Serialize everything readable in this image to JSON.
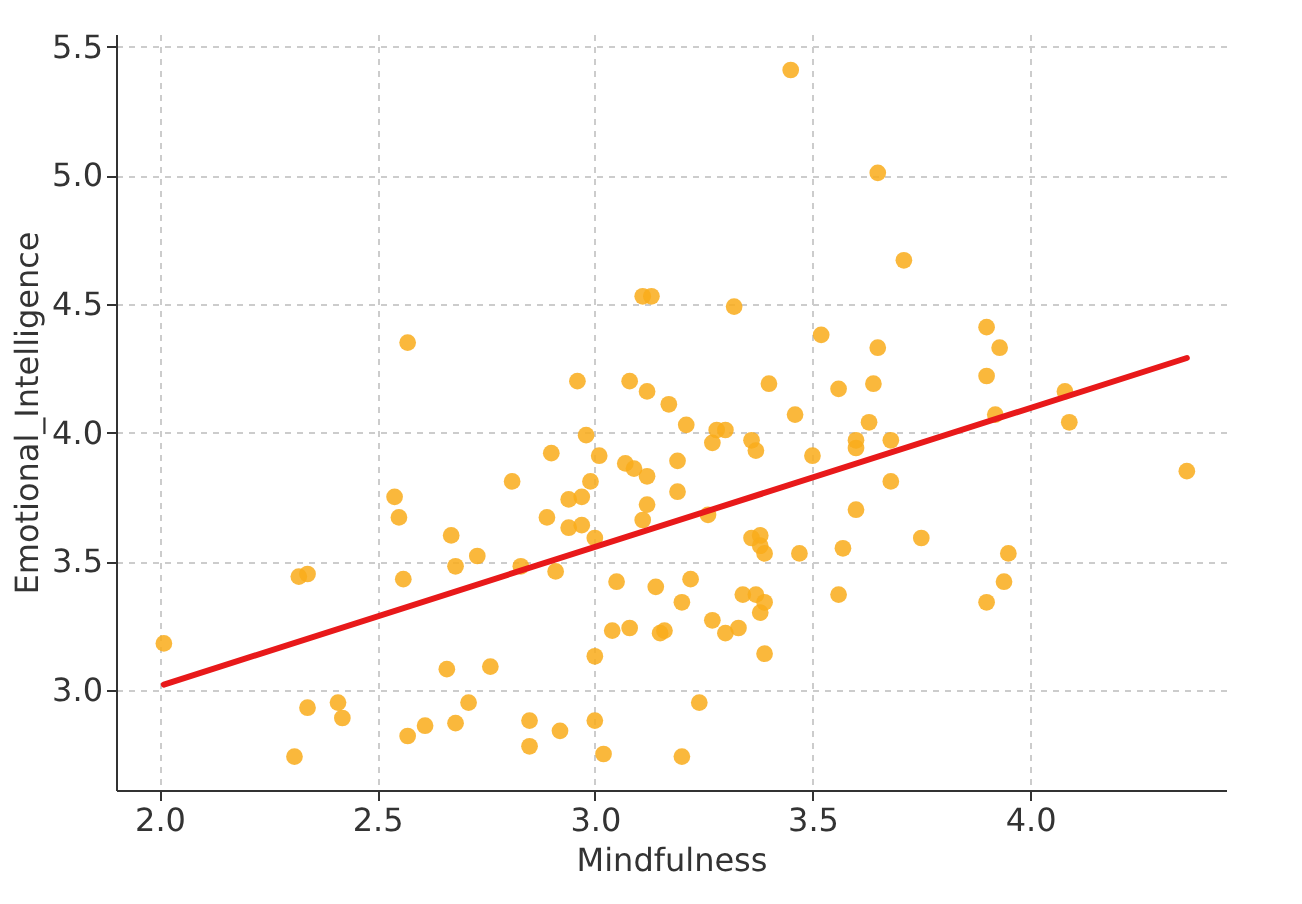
{
  "chart_data": {
    "type": "scatter",
    "xlabel": "Mindfulness",
    "ylabel": "Emotional_Intelligence",
    "xlim": [
      1.9,
      4.45
    ],
    "ylim": [
      2.61,
      5.55
    ],
    "xticks": [
      {
        "value": 2,
        "label": "2.0"
      },
      2.5,
      {
        "value": 3,
        "label": "3.0"
      },
      3.5,
      {
        "value": 4,
        "label": "4.0"
      }
    ],
    "yticks": [
      {
        "value": 3,
        "label": "3.0"
      },
      3.5,
      {
        "value": 4,
        "label": "4.0"
      },
      4.5,
      {
        "value": 5,
        "label": "5.0"
      },
      5.5
    ],
    "grid": true,
    "series": [
      {
        "type": "scatter",
        "color": "#f9ac1a",
        "marker": "circle",
        "x": [
          2.01,
          2.31,
          2.34,
          2.32,
          2.34,
          2.41,
          2.42,
          2.54,
          2.55,
          2.56,
          2.57,
          2.57,
          2.61,
          2.66,
          2.67,
          2.68,
          2.68,
          2.71,
          2.73,
          2.76,
          2.81,
          2.83,
          2.85,
          2.85,
          2.89,
          2.9,
          2.91,
          2.92,
          2.94,
          2.94,
          2.96,
          2.97,
          2.97,
          2.98,
          2.99,
          3.0,
          3.0,
          3.01,
          3.0,
          3.02,
          3.04,
          3.05,
          3.07,
          3.08,
          3.08,
          3.09,
          3.11,
          3.11,
          3.12,
          3.12,
          3.13,
          3.12,
          3.14,
          3.15,
          3.16,
          3.17,
          3.19,
          3.19,
          3.2,
          3.2,
          3.21,
          3.24,
          3.22,
          3.26,
          3.27,
          3.27,
          3.28,
          3.3,
          3.3,
          3.32,
          3.33,
          3.34,
          3.36,
          3.36,
          3.37,
          3.37,
          3.38,
          3.39,
          3.38,
          3.38,
          3.39,
          3.39,
          3.4,
          3.46,
          3.45,
          3.47,
          3.5,
          3.52,
          3.56,
          3.56,
          3.57,
          3.6,
          3.6,
          3.6,
          3.63,
          3.64,
          3.65,
          3.65,
          3.68,
          3.68,
          3.71,
          3.75,
          3.9,
          3.9,
          3.9,
          3.92,
          3.93,
          3.94,
          3.95,
          4.08,
          4.09,
          4.36
        ],
        "values": [
          3.18,
          2.74,
          2.93,
          3.44,
          3.45,
          2.95,
          2.89,
          3.75,
          3.67,
          3.43,
          4.35,
          2.82,
          2.86,
          3.08,
          3.6,
          2.87,
          3.48,
          2.95,
          3.52,
          3.09,
          3.81,
          3.48,
          2.78,
          2.88,
          3.67,
          3.92,
          3.46,
          2.84,
          3.74,
          3.63,
          4.2,
          3.64,
          3.75,
          3.99,
          3.81,
          3.13,
          3.59,
          3.91,
          2.88,
          2.75,
          3.23,
          3.42,
          3.88,
          4.2,
          3.24,
          3.86,
          3.66,
          4.53,
          3.72,
          4.16,
          4.53,
          3.83,
          3.4,
          3.22,
          3.23,
          4.11,
          3.89,
          3.77,
          2.74,
          3.34,
          4.03,
          2.95,
          3.43,
          3.68,
          3.96,
          3.27,
          4.01,
          4.01,
          3.22,
          4.49,
          3.24,
          3.37,
          3.97,
          3.59,
          3.37,
          3.93,
          3.3,
          3.34,
          3.56,
          3.6,
          3.14,
          3.53,
          4.19,
          4.07,
          5.41,
          3.53,
          3.91,
          4.38,
          3.37,
          4.17,
          3.55,
          3.7,
          3.94,
          3.97,
          4.04,
          4.19,
          4.33,
          5.01,
          3.81,
          3.97,
          4.67,
          3.59,
          4.22,
          3.34,
          4.41,
          4.07,
          4.33,
          3.42,
          3.53,
          4.16,
          4.04,
          3.85
        ]
      },
      {
        "type": "line",
        "color": "#e8191a",
        "line_style": "solid",
        "marker": "none",
        "x": [
          2.01,
          4.36
        ],
        "values": [
          3.02,
          4.29
        ]
      }
    ]
  }
}
